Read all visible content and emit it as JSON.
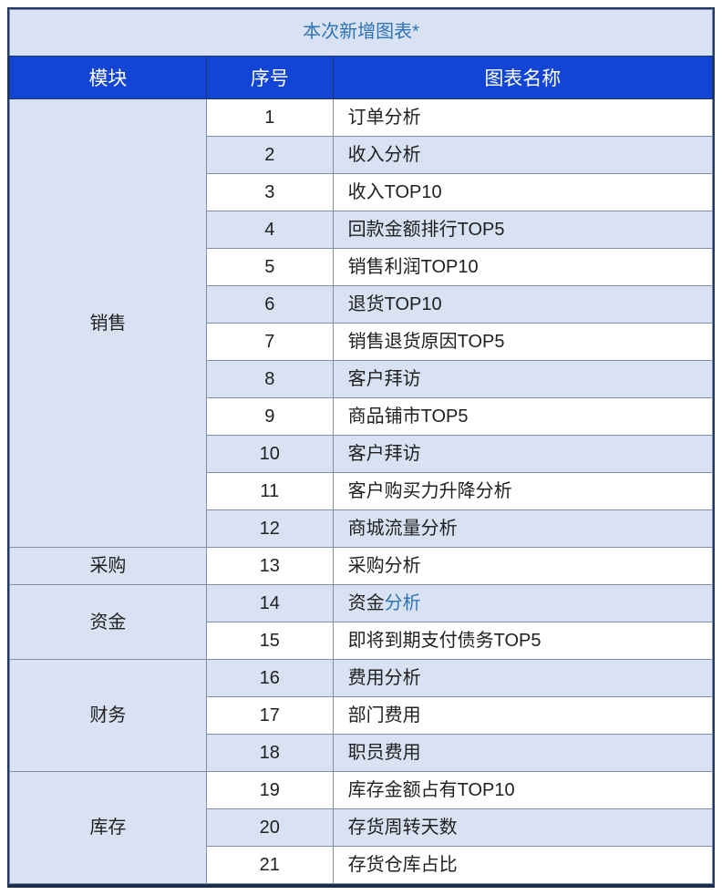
{
  "table": {
    "title": "本次新增图表*",
    "columns": [
      "模块",
      "序号",
      "图表名称"
    ],
    "colors": {
      "title_bg": "#d9e2f3",
      "title_text": "#2e74b5",
      "header_bg": "#1245d6",
      "header_text": "#ffffff",
      "row_bg": "#ffffff",
      "row_alt_bg": "#d9e2f3",
      "module_bg": "#d9e2f3",
      "border_outer": "#1f3864",
      "border_inner": "#7f8fa6",
      "text": "#202020",
      "link_text": "#2e74b5"
    },
    "groups": [
      {
        "module": "销售",
        "rows": [
          {
            "seq": "1",
            "name": "订单分析"
          },
          {
            "seq": "2",
            "name": "收入分析"
          },
          {
            "seq": "3",
            "name": "收入TOP10"
          },
          {
            "seq": "4",
            "name": "回款金额排行TOP5"
          },
          {
            "seq": "5",
            "name": "销售利润TOP10"
          },
          {
            "seq": "6",
            "name": "退货TOP10"
          },
          {
            "seq": "7",
            "name": "销售退货原因TOP5"
          },
          {
            "seq": "8",
            "name": "客户拜访"
          },
          {
            "seq": "9",
            "name": "商品铺市TOP5"
          },
          {
            "seq": "10",
            "name": "客户拜访"
          },
          {
            "seq": "11",
            "name": "客户购买力升降分析"
          },
          {
            "seq": "12",
            "name": "商城流量分析"
          }
        ]
      },
      {
        "module": "采购",
        "rows": [
          {
            "seq": "13",
            "name": "采购分析"
          }
        ]
      },
      {
        "module": "资金",
        "rows": [
          {
            "seq": "14",
            "name_prefix": "资金",
            "name_link": "分析"
          },
          {
            "seq": "15",
            "name": "即将到期支付债务TOP5"
          }
        ]
      },
      {
        "module": "财务",
        "rows": [
          {
            "seq": "16",
            "name": "费用分析"
          },
          {
            "seq": "17",
            "name": "部门费用"
          },
          {
            "seq": "18",
            "name": "职员费用"
          }
        ]
      },
      {
        "module": "库存",
        "rows": [
          {
            "seq": "19",
            "name": "库存金额占有TOP10"
          },
          {
            "seq": "20",
            "name": "存货周转天数"
          },
          {
            "seq": "21",
            "name": "存货仓库占比"
          }
        ]
      }
    ]
  }
}
